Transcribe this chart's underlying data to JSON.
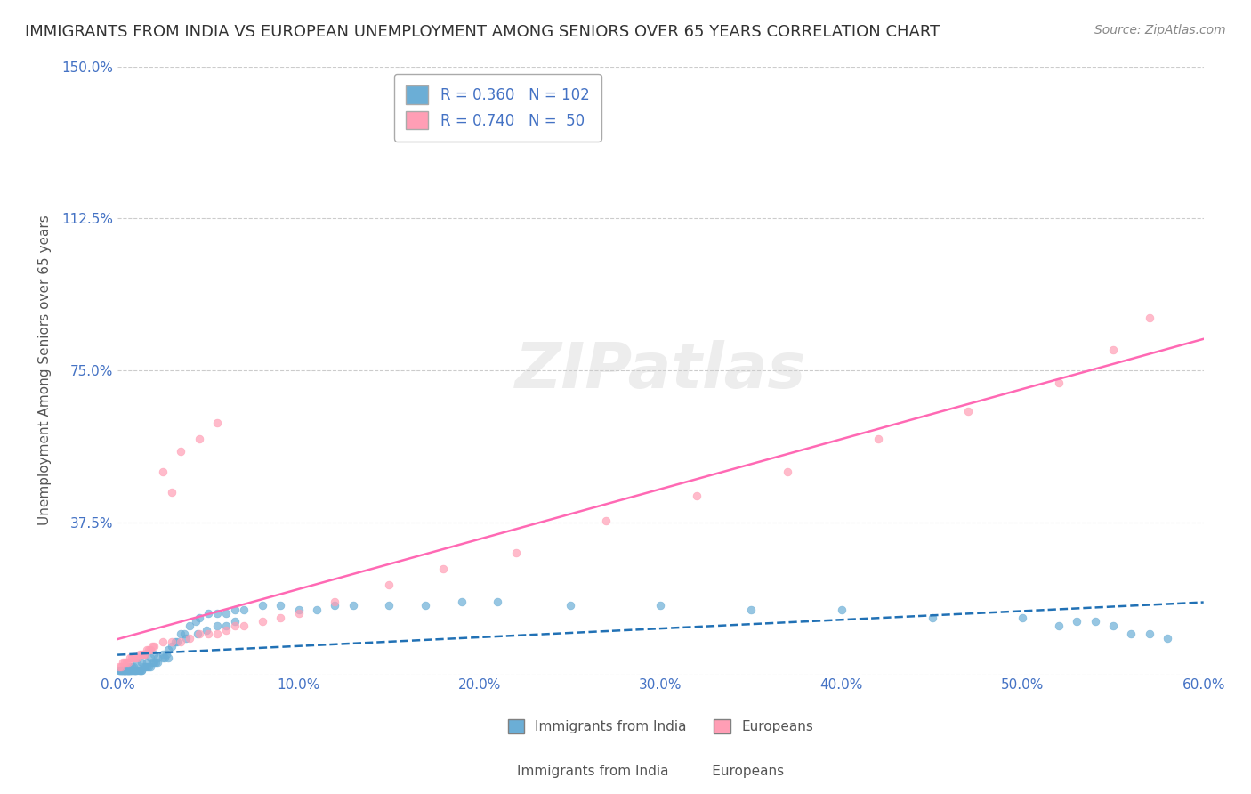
{
  "title": "IMMIGRANTS FROM INDIA VS EUROPEAN UNEMPLOYMENT AMONG SENIORS OVER 65 YEARS CORRELATION CHART",
  "source": "Source: ZipAtlas.com",
  "xlabel_bottom": "",
  "ylabel": "Unemployment Among Seniors over 65 years",
  "watermark": "ZIPatlas",
  "series": [
    {
      "label": "Immigrants from India",
      "R": 0.36,
      "N": 102,
      "color": "#6baed6",
      "marker_color": "#6baed6",
      "line_color": "#2171b5",
      "line_style": "--",
      "x": [
        0.001,
        0.002,
        0.002,
        0.003,
        0.003,
        0.004,
        0.004,
        0.004,
        0.005,
        0.005,
        0.005,
        0.006,
        0.006,
        0.006,
        0.007,
        0.007,
        0.007,
        0.008,
        0.008,
        0.009,
        0.009,
        0.01,
        0.01,
        0.01,
        0.011,
        0.012,
        0.012,
        0.013,
        0.013,
        0.014,
        0.015,
        0.016,
        0.017,
        0.018,
        0.019,
        0.02,
        0.021,
        0.022,
        0.025,
        0.026,
        0.027,
        0.028,
        0.03,
        0.032,
        0.035,
        0.037,
        0.04,
        0.043,
        0.045,
        0.05,
        0.055,
        0.06,
        0.065,
        0.07,
        0.08,
        0.09,
        0.1,
        0.11,
        0.12,
        0.13,
        0.15,
        0.17,
        0.19,
        0.21,
        0.25,
        0.3,
        0.35,
        0.4,
        0.45,
        0.5,
        0.52,
        0.53,
        0.54,
        0.55,
        0.56,
        0.57,
        0.58,
        0.02,
        0.025,
        0.015,
        0.008,
        0.006,
        0.004,
        0.003,
        0.002,
        0.001,
        0.005,
        0.007,
        0.009,
        0.011,
        0.013,
        0.016,
        0.018,
        0.022,
        0.028,
        0.033,
        0.038,
        0.044,
        0.049,
        0.055,
        0.06,
        0.065
      ],
      "y": [
        0.01,
        0.01,
        0.01,
        0.01,
        0.01,
        0.01,
        0.01,
        0.01,
        0.01,
        0.01,
        0.01,
        0.01,
        0.01,
        0.01,
        0.01,
        0.01,
        0.01,
        0.01,
        0.01,
        0.01,
        0.01,
        0.01,
        0.01,
        0.01,
        0.01,
        0.01,
        0.01,
        0.01,
        0.01,
        0.02,
        0.02,
        0.02,
        0.02,
        0.02,
        0.03,
        0.03,
        0.03,
        0.03,
        0.04,
        0.04,
        0.05,
        0.06,
        0.07,
        0.08,
        0.1,
        0.1,
        0.12,
        0.13,
        0.14,
        0.15,
        0.15,
        0.15,
        0.16,
        0.16,
        0.17,
        0.17,
        0.16,
        0.16,
        0.17,
        0.17,
        0.17,
        0.17,
        0.18,
        0.18,
        0.17,
        0.17,
        0.16,
        0.16,
        0.14,
        0.14,
        0.12,
        0.13,
        0.13,
        0.12,
        0.1,
        0.1,
        0.09,
        0.05,
        0.05,
        0.05,
        0.02,
        0.01,
        0.01,
        0.01,
        0.01,
        0.01,
        0.02,
        0.02,
        0.02,
        0.03,
        0.03,
        0.03,
        0.04,
        0.04,
        0.04,
        0.08,
        0.09,
        0.1,
        0.11,
        0.12,
        0.12,
        0.13
      ]
    },
    {
      "label": "Europeans",
      "R": 0.74,
      "N": 50,
      "color": "#ff9eb5",
      "marker_color": "#ff9eb5",
      "line_color": "#ff69b4",
      "line_style": "-",
      "x": [
        0.001,
        0.002,
        0.003,
        0.004,
        0.005,
        0.006,
        0.007,
        0.008,
        0.009,
        0.01,
        0.011,
        0.012,
        0.013,
        0.014,
        0.015,
        0.016,
        0.017,
        0.018,
        0.019,
        0.02,
        0.025,
        0.03,
        0.035,
        0.04,
        0.045,
        0.05,
        0.055,
        0.06,
        0.065,
        0.07,
        0.08,
        0.09,
        0.1,
        0.12,
        0.15,
        0.18,
        0.22,
        0.27,
        0.32,
        0.37,
        0.42,
        0.47,
        0.52,
        0.55,
        0.57,
        0.03,
        0.025,
        0.035,
        0.045,
        0.055
      ],
      "y": [
        0.02,
        0.02,
        0.03,
        0.03,
        0.03,
        0.03,
        0.04,
        0.04,
        0.04,
        0.04,
        0.04,
        0.05,
        0.05,
        0.05,
        0.05,
        0.06,
        0.06,
        0.06,
        0.07,
        0.07,
        0.08,
        0.08,
        0.08,
        0.09,
        0.1,
        0.1,
        0.1,
        0.11,
        0.12,
        0.12,
        0.13,
        0.14,
        0.15,
        0.18,
        0.22,
        0.26,
        0.3,
        0.38,
        0.44,
        0.5,
        0.58,
        0.65,
        0.72,
        0.8,
        0.88,
        0.45,
        0.5,
        0.55,
        0.58,
        0.62
      ]
    }
  ],
  "legend_entries": [
    {
      "label": "R = 0.360   N = 102",
      "color": "#6baed6"
    },
    {
      "label": "R = 0.740   N =  50",
      "color": "#ff9eb5"
    }
  ],
  "xlim": [
    0,
    0.6
  ],
  "ylim": [
    0,
    1.5
  ],
  "xticks": [
    0.0,
    0.1,
    0.2,
    0.3,
    0.4,
    0.5,
    0.6
  ],
  "xticklabels": [
    "0.0%",
    "10.0%",
    "20.0%",
    "30.0%",
    "40.0%",
    "50.0%",
    "60.0%"
  ],
  "yticks": [
    0.0,
    0.375,
    0.75,
    1.125,
    1.5
  ],
  "yticklabels": [
    "",
    "37.5%",
    "75.0%",
    "112.5%",
    "150.0%"
  ],
  "grid_color": "#cccccc",
  "bg_color": "#ffffff",
  "title_color": "#333333",
  "axis_label_color": "#555555",
  "tick_color": "#4472c4",
  "watermark_color": "#cccccc",
  "source_color": "#888888"
}
